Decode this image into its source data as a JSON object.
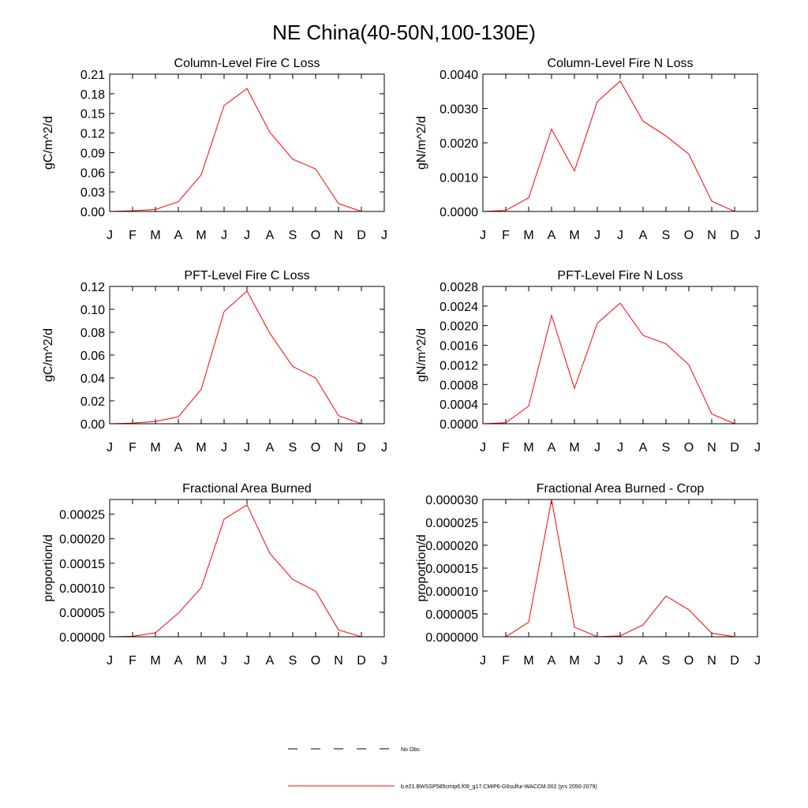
{
  "title": "NE China(40-50N,100-130E)",
  "legend": [
    {
      "name": "No Obs",
      "color": "#000000",
      "dash": true
    },
    {
      "name": "b.e21.BWSSP585cmip6.f09_g17.CMIP6-G6sulfur-WACCM.002 (yrs 2050-2079)",
      "color": "#ff0000",
      "dash": false
    }
  ],
  "chart_data": [
    {
      "type": "line",
      "title": "Column-Level Fire C Loss",
      "ylabel": "gC/m^2/d",
      "color": "#ff0000",
      "categories": [
        "J",
        "F",
        "M",
        "A",
        "M",
        "J",
        "J",
        "A",
        "S",
        "O",
        "N",
        "D",
        "J"
      ],
      "values": [
        0,
        0.001,
        0.003,
        0.015,
        0.056,
        0.162,
        0.188,
        0.121,
        0.08,
        0.065,
        0.012,
        0,
        0
      ],
      "ylim": [
        0,
        0.21
      ],
      "yticks": [
        {
          "value": 0,
          "label": "0.00"
        },
        0.03,
        0.06,
        0.09,
        0.12,
        0.15,
        0.18,
        0.21
      ]
    },
    {
      "type": "line",
      "title": "Column-Level Fire N Loss",
      "ylabel": "gN/m^2/d",
      "color": "#ff0000",
      "categories": [
        "J",
        "F",
        "M",
        "A",
        "M",
        "J",
        "J",
        "A",
        "S",
        "O",
        "N",
        "D",
        "J"
      ],
      "values": [
        0,
        3e-05,
        0.0004,
        0.0024,
        0.00118,
        0.0032,
        0.0038,
        0.00263,
        0.0022,
        0.00167,
        0.0003,
        0,
        0
      ],
      "ylim": [
        0,
        0.004
      ],
      "yticks": [
        {
          "value": 0,
          "label": "0.0000"
        },
        {
          "value": 0.001,
          "label": "0.0010"
        },
        {
          "value": 0.002,
          "label": "0.0020"
        },
        {
          "value": 0.003,
          "label": "0.0030"
        },
        {
          "value": 0.004,
          "label": "0.0040"
        }
      ]
    },
    {
      "type": "line",
      "title": "PFT-Level Fire C Loss",
      "ylabel": "gC/m^2/d",
      "color": "#ff0000",
      "categories": [
        "J",
        "F",
        "M",
        "A",
        "M",
        "J",
        "J",
        "A",
        "S",
        "O",
        "N",
        "D",
        "J"
      ],
      "values": [
        0,
        0.0005,
        0.002,
        0.006,
        0.03,
        0.098,
        0.116,
        0.079,
        0.05,
        0.04,
        0.007,
        0,
        0
      ],
      "ylim": [
        0,
        0.12
      ],
      "yticks": [
        {
          "value": 0,
          "label": "0.00"
        },
        0.02,
        0.04,
        0.06,
        0.08,
        {
          "value": 0.1,
          "label": "0.10"
        },
        0.12
      ]
    },
    {
      "type": "line",
      "title": "PFT-Level Fire N Loss",
      "ylabel": "gN/m^2/d",
      "color": "#ff0000",
      "categories": [
        "J",
        "F",
        "M",
        "A",
        "M",
        "J",
        "J",
        "A",
        "S",
        "O",
        "N",
        "D",
        "J"
      ],
      "values": [
        0,
        2e-05,
        0.00036,
        0.00221,
        0.00072,
        0.00205,
        0.00246,
        0.0018,
        0.00163,
        0.0012,
        0.0002,
        0,
        0
      ],
      "ylim": [
        0,
        0.0028
      ],
      "yticks": [
        {
          "value": 0,
          "label": "0.0000"
        },
        0.0004,
        0.0008,
        0.0012,
        0.0016,
        {
          "value": 0.002,
          "label": "0.0020"
        },
        0.0024,
        0.0028
      ]
    },
    {
      "type": "line",
      "title": "Fractional Area Burned",
      "ylabel": "proportion/d",
      "color": "#ff0000",
      "categories": [
        "J",
        "F",
        "M",
        "A",
        "M",
        "J",
        "J",
        "A",
        "S",
        "O",
        "N",
        "D",
        "J"
      ],
      "values": [
        0,
        1e-06,
        8e-06,
        4.8e-05,
        0.0001,
        0.00024,
        0.000269,
        0.00017,
        0.000117,
        9.3e-05,
        1.4e-05,
        0,
        0
      ],
      "ylim": [
        0,
        0.00028
      ],
      "yticks": [
        {
          "value": 0,
          "label": "0.00000"
        },
        5e-05,
        {
          "value": 0.0001,
          "label": "0.00010"
        },
        0.00015,
        {
          "value": 0.0002,
          "label": "0.00020"
        },
        0.00025
      ]
    },
    {
      "type": "line",
      "title": "Fractional Area Burned - Crop",
      "ylabel": "proportion/d",
      "color": "#ff0000",
      "categories": [
        "J",
        "F",
        "M",
        "A",
        "M",
        "J",
        "J",
        "A",
        "S",
        "O",
        "N",
        "D",
        "J"
      ],
      "values": [
        0,
        0,
        3.2e-06,
        3e-05,
        2.1e-06,
        0,
        2e-07,
        2.6e-06,
        8.9e-06,
        5.9e-06,
        8e-07,
        0,
        0
      ],
      "ylim": [
        0,
        3e-05
      ],
      "yticks": [
        {
          "value": 0,
          "label": "0.000000"
        },
        5e-06,
        {
          "value": 1e-05,
          "label": "0.000010"
        },
        1.5e-05,
        {
          "value": 2e-05,
          "label": "0.000020"
        },
        2.5e-05,
        {
          "value": 3e-05,
          "label": "0.000030"
        }
      ]
    }
  ]
}
